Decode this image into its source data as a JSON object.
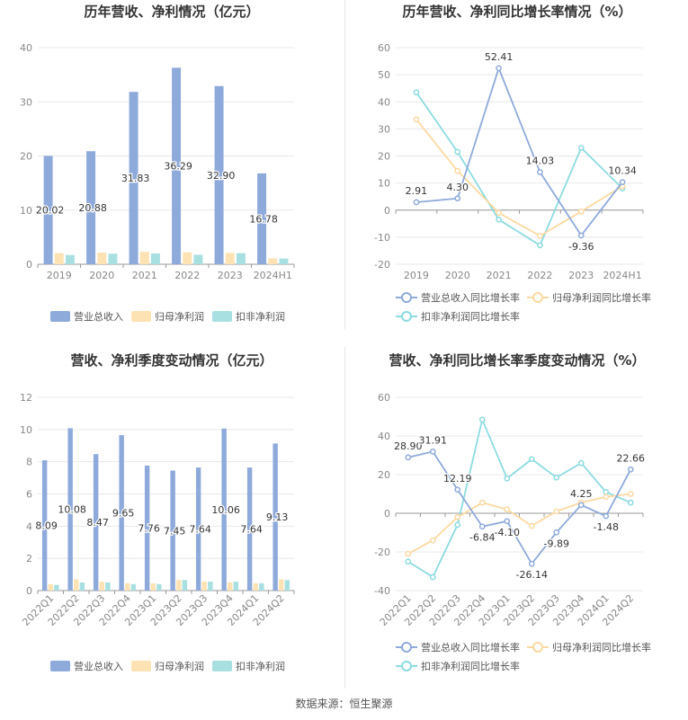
{
  "source_text": "数据来源：恒生聚源",
  "colors": {
    "revenue": "#8eaadb",
    "net_profit": "#fde3b3",
    "deducted_profit": "#a8e0e1",
    "revenue_line": "#8eaadb",
    "net_line": "#fcd9a0",
    "deducted_line": "#8bdbe0",
    "grid": "#e8e8e8",
    "axis_text": "#888888",
    "title": "#333333"
  },
  "chart_data": [
    {
      "id": "annual-bar",
      "type": "bar",
      "title": "历年营收、净利情况（亿元）",
      "categories": [
        "2019",
        "2020",
        "2021",
        "2022",
        "2023",
        "2024H1"
      ],
      "series": [
        {
          "name": "营业总收入",
          "values": [
            20.02,
            20.88,
            31.83,
            36.29,
            32.9,
            16.78
          ],
          "labels": [
            "20.02",
            "20.88",
            "31.83",
            "36.29",
            "32.90",
            "16.78"
          ]
        },
        {
          "name": "归母净利润",
          "values": [
            2.05,
            2.15,
            2.3,
            2.2,
            2.1,
            1.1
          ]
        },
        {
          "name": "扣非净利润",
          "values": [
            1.7,
            1.95,
            2.0,
            1.75,
            2.05,
            1.05
          ]
        }
      ],
      "ylim": [
        0,
        40
      ],
      "yticks": [
        "0",
        "10",
        "20",
        "30",
        "40"
      ],
      "legend": "bottom"
    },
    {
      "id": "annual-line",
      "type": "line",
      "title": "历年营收、净利同比增长率情况（%）",
      "categories": [
        "2019",
        "2020",
        "2021",
        "2022",
        "2023",
        "2024H1"
      ],
      "series": [
        {
          "name": "营业总收入同比增长率",
          "values": [
            2.91,
            4.3,
            52.41,
            14.03,
            -9.36,
            10.34
          ],
          "labels": [
            "2.91",
            "4.30",
            "52.41",
            "14.03",
            "-9.36",
            "10.34"
          ]
        },
        {
          "name": "归母净利润同比增长率",
          "values": [
            33.5,
            14.5,
            -1.0,
            -9.5,
            -0.5,
            8.8
          ]
        },
        {
          "name": "扣非净利润同比增长率",
          "values": [
            43.5,
            21.5,
            -3.5,
            -13.0,
            23.0,
            8.0
          ]
        }
      ],
      "ylim": [
        -20,
        60
      ],
      "yticks": [
        "-20",
        "-10",
        "0",
        "10",
        "20",
        "30",
        "40",
        "50",
        "60"
      ],
      "legend": "bottom"
    },
    {
      "id": "quarterly-bar",
      "type": "bar",
      "title": "营收、净利季度变动情况（亿元）",
      "categories": [
        "2022Q1",
        "2022Q2",
        "2022Q3",
        "2022Q4",
        "2023Q1",
        "2023Q2",
        "2023Q3",
        "2023Q4",
        "2024Q1",
        "2024Q2"
      ],
      "series": [
        {
          "name": "营业总收入",
          "values": [
            8.09,
            10.08,
            8.47,
            9.65,
            7.76,
            7.45,
            7.64,
            10.06,
            7.64,
            9.13
          ],
          "labels": [
            "8.09",
            "10.08",
            "8.47",
            "9.65",
            "7.76",
            "7.45",
            "7.64",
            "10.06",
            "7.64",
            "9.13"
          ]
        },
        {
          "name": "归母净利润",
          "values": [
            0.4,
            0.7,
            0.55,
            0.45,
            0.45,
            0.65,
            0.55,
            0.5,
            0.45,
            0.7
          ]
        },
        {
          "name": "扣非净利润",
          "values": [
            0.35,
            0.5,
            0.5,
            0.4,
            0.4,
            0.65,
            0.55,
            0.55,
            0.45,
            0.65
          ]
        }
      ],
      "ylim": [
        0,
        12
      ],
      "yticks": [
        "0",
        "2",
        "4",
        "6",
        "8",
        "10",
        "12"
      ],
      "legend": "bottom"
    },
    {
      "id": "quarterly-line",
      "type": "line",
      "title": "营收、净利同比增长率季度变动情况（%）",
      "categories": [
        "2022Q1",
        "2022Q2",
        "2022Q3",
        "2022Q4",
        "2023Q1",
        "2023Q2",
        "2023Q3",
        "2023Q4",
        "2024Q1",
        "2024Q2"
      ],
      "series": [
        {
          "name": "营业总收入同比增长率",
          "values": [
            28.9,
            31.91,
            12.19,
            -6.84,
            -4.1,
            -26.14,
            -9.89,
            4.25,
            -1.48,
            22.66
          ],
          "labels": [
            "28.90",
            "31.91",
            "12.19",
            "-6.84",
            "-4.10",
            "-26.14",
            "-9.89",
            "4.25",
            "-1.48",
            "22.66"
          ]
        },
        {
          "name": "归母净利润同比增长率",
          "values": [
            -21.0,
            -14.0,
            -2.0,
            5.5,
            2.0,
            -6.5,
            1.0,
            5.5,
            8.5,
            10.0
          ]
        },
        {
          "name": "扣非净利润同比增长率",
          "values": [
            -25.0,
            -33.0,
            -6.0,
            48.5,
            18.0,
            28.0,
            18.5,
            26.0,
            11.0,
            5.5
          ]
        }
      ],
      "ylim": [
        -40,
        60
      ],
      "yticks": [
        "-40",
        "-20",
        "0",
        "20",
        "40",
        "60"
      ],
      "legend": "bottom"
    }
  ]
}
